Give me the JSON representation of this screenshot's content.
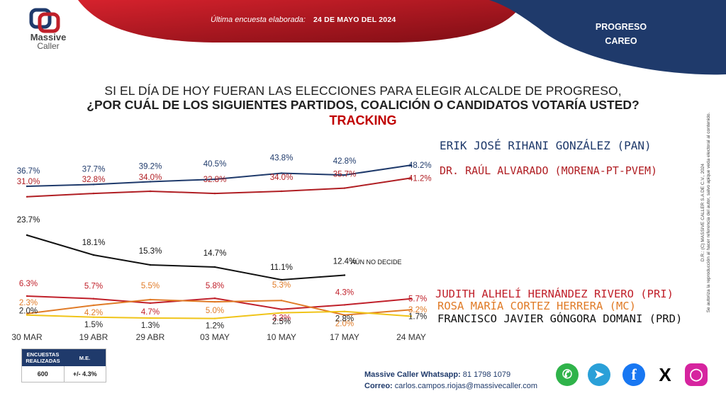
{
  "header": {
    "logo_line1": "Massive",
    "logo_line2": "Caller",
    "survey_label": "Última encuesta elaborada:",
    "survey_date": "24 DE MAYO DEL 2024",
    "corner_title_1": "PROGRESO",
    "corner_title_2": "CAREO",
    "colors": {
      "red": "#a50f1c",
      "navy": "#1f3a6b"
    }
  },
  "question": {
    "line1": "SI EL DÍA DE HOY FUERAN LAS ELECCIONES PARA ELEGIR ALCALDE DE PROGRESO,",
    "line2": "¿POR CUÁL DE LOS SIGUIENTES PARTIDOS, COALICIÓN O CANDIDATOS VOTARÍA USTED?",
    "line3": "TRACKING"
  },
  "chart_data": {
    "type": "line",
    "categories": [
      "30 MAR",
      "19 ABR",
      "29 ABR",
      "03 MAY",
      "10 MAY",
      "17 MAY",
      "24 MAY"
    ],
    "series": [
      {
        "name": "ERIK JOSÉ RIHANI GONZÁLEZ (PAN)",
        "color": "#1f3a6b",
        "values": [
          36.7,
          37.7,
          39.2,
          40.5,
          43.8,
          42.8,
          48.2
        ],
        "labels": [
          "36.7%",
          "37.7%",
          "39.2%",
          "40.5%",
          "43.8%",
          "42.8%",
          "48.2%"
        ]
      },
      {
        "name": "DR. RAÚL ALVARADO (MORENA-PT-PVEM)",
        "color": "#b01e23",
        "values": [
          31.0,
          32.8,
          34.0,
          32.8,
          34.0,
          35.7,
          41.2
        ],
        "labels": [
          "31.0%",
          "32.8%",
          "34.0%",
          "32.8%",
          "34.0%",
          "35.7%",
          "41.2%"
        ]
      },
      {
        "name": "AÚN NO DECIDE",
        "color": "#111111",
        "values": [
          23.7,
          18.1,
          15.3,
          14.7,
          11.1,
          12.4,
          null
        ],
        "labels": [
          "23.7%",
          "18.1%",
          "15.3%",
          "14.7%",
          "11.1%",
          "12.4%",
          ""
        ]
      },
      {
        "name": "JUDITH ALHELÍ HERNÁNDEZ RIVERO (PRI)",
        "color": "#c0202a",
        "values": [
          6.3,
          5.7,
          4.7,
          5.8,
          3.3,
          4.3,
          5.7
        ],
        "labels": [
          "6.3%",
          "5.7%",
          "4.7%",
          "5.8%",
          "3.3%",
          "4.3%",
          "5.7%"
        ]
      },
      {
        "name": "ROSA MARÍA CORTEZ HERRERA (MC)",
        "color": "#e07b27",
        "values": [
          2.3,
          4.2,
          5.5,
          5.0,
          5.3,
          2.0,
          3.2
        ],
        "labels": [
          "2.3%",
          "4.2%",
          "5.5%",
          "5.0%",
          "5.3%",
          "2.0%",
          "3.2%"
        ]
      },
      {
        "name": "FRANCISCO JAVIER GÓNGORA DOMANI (PRD)",
        "color": "#f0c419",
        "values": [
          2.0,
          1.5,
          1.3,
          1.2,
          2.5,
          2.8,
          1.7
        ],
        "labels": [
          "2.0%",
          "1.5%",
          "1.3%",
          "1.2%",
          "2.5%",
          "2.8%",
          "1.7%"
        ]
      }
    ],
    "legend_placement": "right-of-line-ends",
    "grid": false
  },
  "stats": {
    "col1_header": "ENCUESTAS REALIZADAS",
    "col2_header": "M.E.",
    "col1_value": "600",
    "col2_value": "+/- 4.3%"
  },
  "contact": {
    "whatsapp_label": "Massive Caller Whatsapp:",
    "whatsapp_number": "81 1798 1079",
    "email_label": "Correo:",
    "email": "carlos.campos.riojas@massivecaller.com"
  },
  "side_note": {
    "line1": "D.R.: (C) MASSIVE CALLER S.A DE C.V., 2024",
    "line2": "Se autoriza la reproducción al hacer referencia del autor, salvo apique veda electoral al contenido."
  },
  "social": [
    "whatsapp-icon",
    "telegram-icon",
    "facebook-icon",
    "x-icon",
    "instagram-icon"
  ]
}
